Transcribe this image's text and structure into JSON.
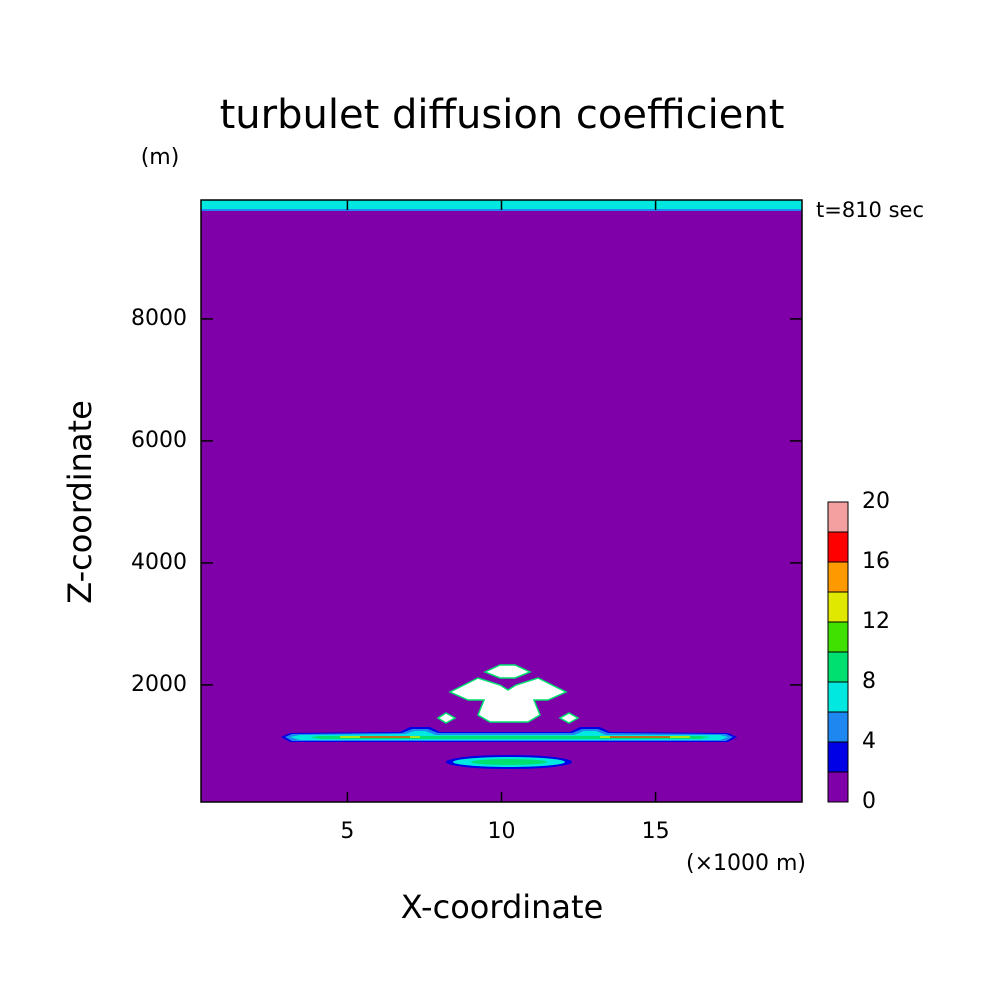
{
  "chart_data": {
    "type": "contour",
    "title": "turbulet diffusion coefficient",
    "x_label": "X-coordinate",
    "y_label": "Z-coordinate",
    "y_unit": "(m)",
    "x_unit": "(×1000 m)",
    "annotation": "t=810 sec",
    "xlim": [
      0.25,
      19.75
    ],
    "xticks": [
      5,
      10,
      15
    ],
    "ylim": [
      80,
      9950
    ],
    "yticks": [
      2000,
      4000,
      6000,
      8000
    ],
    "colorbar": {
      "levels": [
        0,
        2,
        4,
        6,
        8,
        10,
        12,
        14,
        16,
        18,
        20
      ],
      "colors": [
        "#7f00a8",
        "#0000e6",
        "#1e88f0",
        "#00e8e0",
        "#00e070",
        "#40e000",
        "#e0e800",
        "#ff9900",
        "#ff0000",
        "#f4a0a0"
      ],
      "ticks": [
        0,
        4,
        8,
        12,
        16,
        20
      ]
    }
  }
}
